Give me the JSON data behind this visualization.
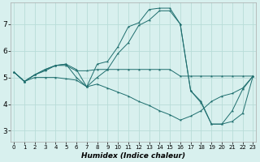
{
  "xlabel": "Humidex (Indice chaleur)",
  "bg_color": "#d8f0ee",
  "grid_color": "#b8dcd8",
  "line_color": "#1e6e6e",
  "x_ticks": [
    0,
    1,
    2,
    3,
    4,
    5,
    6,
    7,
    8,
    9,
    10,
    11,
    12,
    13,
    14,
    15,
    16,
    17,
    18,
    19,
    20,
    21,
    22,
    23
  ],
  "y_ticks": [
    3,
    4,
    5,
    6,
    7
  ],
  "xlim": [
    -0.3,
    23.3
  ],
  "ylim": [
    2.6,
    7.8
  ],
  "series": [
    [
      5.2,
      4.85,
      5.1,
      5.25,
      5.45,
      5.45,
      5.25,
      5.25,
      5.3,
      5.3,
      5.3,
      5.3,
      5.3,
      5.3,
      5.3,
      5.3,
      5.05,
      5.05,
      5.05,
      5.05,
      5.05,
      5.05,
      5.05,
      5.05
    ],
    [
      5.2,
      4.85,
      5.1,
      5.3,
      5.45,
      5.5,
      5.3,
      4.65,
      5.5,
      5.6,
      6.15,
      6.9,
      7.05,
      7.55,
      7.6,
      7.6,
      7.0,
      4.5,
      4.05,
      3.25,
      3.25,
      3.75,
      4.55,
      5.05
    ],
    [
      5.2,
      4.85,
      5.1,
      5.3,
      5.45,
      5.5,
      5.0,
      4.65,
      5.0,
      5.3,
      5.9,
      6.3,
      6.95,
      7.15,
      7.5,
      7.5,
      7.0,
      4.5,
      4.1,
      3.25,
      3.25,
      3.35,
      3.65,
      5.05
    ],
    [
      5.2,
      4.85,
      5.0,
      5.0,
      5.0,
      4.95,
      4.9,
      4.65,
      4.75,
      4.6,
      4.45,
      4.3,
      4.1,
      3.95,
      3.75,
      3.6,
      3.4,
      3.55,
      3.75,
      4.1,
      4.3,
      4.4,
      4.6,
      5.05
    ]
  ]
}
